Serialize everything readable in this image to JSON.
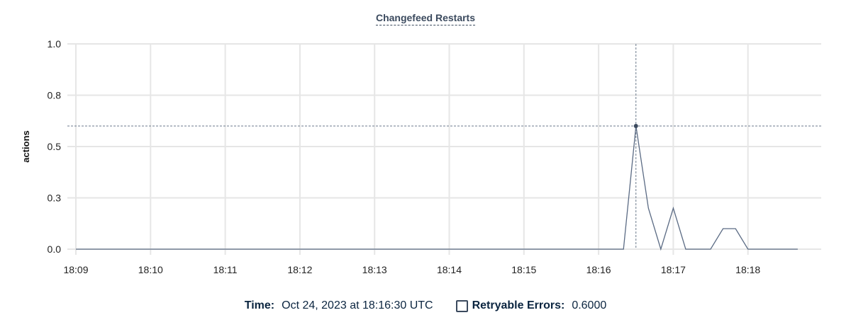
{
  "chart_data": {
    "type": "line",
    "title": "Changefeed Restarts",
    "xlabel": "",
    "ylabel": "actions",
    "ylim": [
      0,
      1.0
    ],
    "yticks": [
      0,
      0.25,
      0.5,
      0.75,
      1.0
    ],
    "ytick_labels": [
      "0.0",
      "0.3",
      "0.5",
      "0.8",
      "1.0"
    ],
    "xticks": [
      "18:09",
      "18:10",
      "18:11",
      "18:12",
      "18:13",
      "18:14",
      "18:15",
      "18:16",
      "18:17",
      "18:18"
    ],
    "grid": true,
    "series": [
      {
        "name": "Retryable Errors",
        "color": "#5b6b84",
        "x": [
          "18:09:00",
          "18:16:20",
          "18:16:30",
          "18:16:40",
          "18:16:50",
          "18:17:00",
          "18:17:10",
          "18:17:30",
          "18:17:40",
          "18:17:50",
          "18:18:00",
          "18:18:40"
        ],
        "values": [
          0,
          0,
          0.6,
          0.2,
          0,
          0.2,
          0,
          0,
          0.1,
          0.1,
          0,
          0
        ]
      }
    ],
    "crosshair": {
      "x": "18:16:30",
      "y": 0.6
    }
  },
  "legend": {
    "time_label": "Time:",
    "time_value": "Oct 24, 2023 at 18:16:30 UTC",
    "series_label": "Retryable Errors:",
    "series_value": "0.6000"
  }
}
